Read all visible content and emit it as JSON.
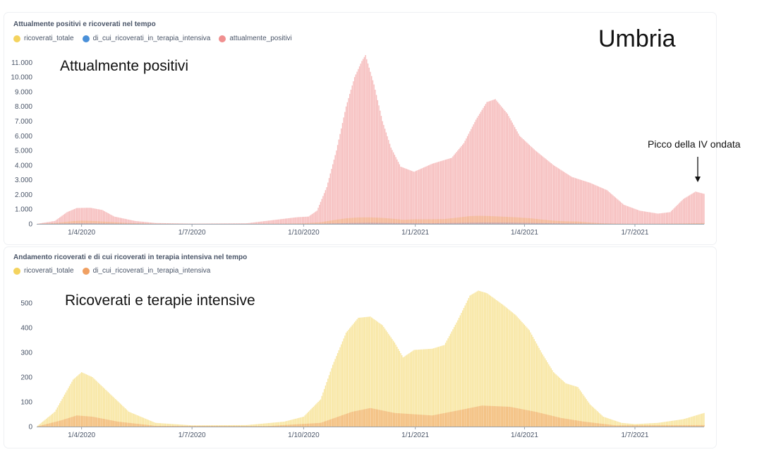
{
  "region_label": "Umbria",
  "chart_data": [
    {
      "type": "bar",
      "title": "Attualmente positivi e ricoverati nel tempo",
      "overlay_label": "Attualmente positivi",
      "annotation": "Picco della IV ondata",
      "xlabel": "",
      "ylabel": "",
      "ylim": [
        0,
        11500
      ],
      "yticks": [
        0,
        1000,
        2000,
        3000,
        4000,
        5000,
        6000,
        7000,
        8000,
        9000,
        10000,
        11000
      ],
      "ytick_labels": [
        "0",
        "1.000",
        "2.000",
        "3.000",
        "4.000",
        "5.000",
        "6.000",
        "7.000",
        "8.000",
        "9.000",
        "10.000",
        "11.000"
      ],
      "xtick_labels": [
        "1/4/2020",
        "1/7/2020",
        "1/10/2020",
        "1/1/2021",
        "1/4/2021",
        "1/7/2021"
      ],
      "xlim": [
        "2020-02-24",
        "2021-08-27"
      ],
      "grid": false,
      "legend_position": "top-left",
      "series": [
        {
          "name": "ricoverati_totale",
          "color": "#f4d35e",
          "points": [
            [
              "2020-02-24",
              0
            ],
            [
              "2020-03-10",
              60
            ],
            [
              "2020-03-25",
              190
            ],
            [
              "2020-04-01",
              220
            ],
            [
              "2020-04-10",
              200
            ],
            [
              "2020-04-25",
              130
            ],
            [
              "2020-05-10",
              60
            ],
            [
              "2020-06-01",
              15
            ],
            [
              "2020-07-01",
              5
            ],
            [
              "2020-08-15",
              6
            ],
            [
              "2020-09-15",
              20
            ],
            [
              "2020-10-01",
              40
            ],
            [
              "2020-10-15",
              110
            ],
            [
              "2020-10-25",
              250
            ],
            [
              "2020-11-05",
              380
            ],
            [
              "2020-11-15",
              440
            ],
            [
              "2020-11-25",
              445
            ],
            [
              "2020-12-05",
              410
            ],
            [
              "2020-12-15",
              340
            ],
            [
              "2020-12-22",
              280
            ],
            [
              "2020-12-31",
              310
            ],
            [
              "2021-01-15",
              315
            ],
            [
              "2021-01-25",
              330
            ],
            [
              "2021-02-05",
              430
            ],
            [
              "2021-02-15",
              530
            ],
            [
              "2021-02-22",
              550
            ],
            [
              "2021-03-01",
              540
            ],
            [
              "2021-03-15",
              490
            ],
            [
              "2021-03-25",
              450
            ],
            [
              "2021-04-05",
              390
            ],
            [
              "2021-04-15",
              300
            ],
            [
              "2021-04-25",
              220
            ],
            [
              "2021-05-05",
              175
            ],
            [
              "2021-05-15",
              160
            ],
            [
              "2021-05-25",
              90
            ],
            [
              "2021-06-05",
              40
            ],
            [
              "2021-06-20",
              15
            ],
            [
              "2021-07-01",
              10
            ],
            [
              "2021-07-20",
              15
            ],
            [
              "2021-08-10",
              30
            ],
            [
              "2021-08-27",
              55
            ]
          ]
        },
        {
          "name": "di_cui_ricoverati_in_terapia_intensiva",
          "color": "#4a90d9",
          "points": [
            [
              "2020-02-24",
              0
            ],
            [
              "2020-03-15",
              25
            ],
            [
              "2020-03-28",
              45
            ],
            [
              "2020-04-10",
              40
            ],
            [
              "2020-05-01",
              20
            ],
            [
              "2020-06-01",
              3
            ],
            [
              "2020-09-01",
              2
            ],
            [
              "2020-10-15",
              15
            ],
            [
              "2020-11-10",
              60
            ],
            [
              "2020-11-25",
              75
            ],
            [
              "2020-12-15",
              55
            ],
            [
              "2021-01-15",
              45
            ],
            [
              "2021-02-10",
              70
            ],
            [
              "2021-02-25",
              85
            ],
            [
              "2021-03-20",
              80
            ],
            [
              "2021-04-10",
              60
            ],
            [
              "2021-05-01",
              35
            ],
            [
              "2021-05-20",
              20
            ],
            [
              "2021-06-15",
              5
            ],
            [
              "2021-08-27",
              6
            ]
          ]
        },
        {
          "name": "attualmente_positivi",
          "color": "#f08f8f",
          "points": [
            [
              "2020-02-24",
              0
            ],
            [
              "2020-03-10",
              200
            ],
            [
              "2020-03-20",
              800
            ],
            [
              "2020-03-28",
              1080
            ],
            [
              "2020-04-08",
              1100
            ],
            [
              "2020-04-18",
              950
            ],
            [
              "2020-04-28",
              500
            ],
            [
              "2020-05-15",
              200
            ],
            [
              "2020-06-01",
              60
            ],
            [
              "2020-07-01",
              20
            ],
            [
              "2020-08-15",
              40
            ],
            [
              "2020-09-10",
              300
            ],
            [
              "2020-09-25",
              450
            ],
            [
              "2020-10-05",
              500
            ],
            [
              "2020-10-12",
              900
            ],
            [
              "2020-10-20",
              2500
            ],
            [
              "2020-10-28",
              5000
            ],
            [
              "2020-11-05",
              8000
            ],
            [
              "2020-11-12",
              10000
            ],
            [
              "2020-11-18",
              11100
            ],
            [
              "2020-11-21",
              11500
            ],
            [
              "2020-11-28",
              9500
            ],
            [
              "2020-12-05",
              7000
            ],
            [
              "2020-12-12",
              5200
            ],
            [
              "2020-12-20",
              3900
            ],
            [
              "2020-12-31",
              3550
            ],
            [
              "2021-01-15",
              4100
            ],
            [
              "2021-01-31",
              4500
            ],
            [
              "2021-02-10",
              5500
            ],
            [
              "2021-02-20",
              7100
            ],
            [
              "2021-03-01",
              8300
            ],
            [
              "2021-03-08",
              8500
            ],
            [
              "2021-03-18",
              7500
            ],
            [
              "2021-03-28",
              6000
            ],
            [
              "2021-04-10",
              5000
            ],
            [
              "2021-04-25",
              4000
            ],
            [
              "2021-05-10",
              3200
            ],
            [
              "2021-05-25",
              2800
            ],
            [
              "2021-06-08",
              2300
            ],
            [
              "2021-06-22",
              1300
            ],
            [
              "2021-07-05",
              900
            ],
            [
              "2021-07-20",
              700
            ],
            [
              "2021-07-30",
              800
            ],
            [
              "2021-08-10",
              1700
            ],
            [
              "2021-08-20",
              2200
            ],
            [
              "2021-08-27",
              2050
            ]
          ]
        }
      ]
    },
    {
      "type": "bar",
      "title": "Andamento ricoverati e di cui ricoverati in terapia intensiva nel tempo",
      "overlay_label": "Ricoverati e terapie intensive",
      "xlabel": "",
      "ylabel": "",
      "ylim": [
        0,
        560
      ],
      "yticks": [
        0,
        100,
        200,
        300,
        400,
        500
      ],
      "ytick_labels": [
        "0",
        "100",
        "200",
        "300",
        "400",
        "500"
      ],
      "xtick_labels": [
        "1/4/2020",
        "1/7/2020",
        "1/10/2020",
        "1/1/2021",
        "1/4/2021",
        "1/7/2021"
      ],
      "xlim": [
        "2020-02-24",
        "2021-08-27"
      ],
      "grid": false,
      "legend_position": "top-left",
      "series": [
        {
          "name": "ricoverati_totale",
          "color": "#f4d35e",
          "points": [
            [
              "2020-02-24",
              0
            ],
            [
              "2020-03-10",
              60
            ],
            [
              "2020-03-25",
              190
            ],
            [
              "2020-04-01",
              220
            ],
            [
              "2020-04-10",
              200
            ],
            [
              "2020-04-25",
              130
            ],
            [
              "2020-05-10",
              60
            ],
            [
              "2020-06-01",
              15
            ],
            [
              "2020-07-01",
              5
            ],
            [
              "2020-08-15",
              6
            ],
            [
              "2020-09-15",
              20
            ],
            [
              "2020-10-01",
              40
            ],
            [
              "2020-10-15",
              110
            ],
            [
              "2020-10-25",
              250
            ],
            [
              "2020-11-05",
              380
            ],
            [
              "2020-11-15",
              440
            ],
            [
              "2020-11-25",
              445
            ],
            [
              "2020-12-05",
              410
            ],
            [
              "2020-12-15",
              340
            ],
            [
              "2020-12-22",
              280
            ],
            [
              "2020-12-31",
              310
            ],
            [
              "2021-01-15",
              315
            ],
            [
              "2021-01-25",
              330
            ],
            [
              "2021-02-05",
              430
            ],
            [
              "2021-02-15",
              530
            ],
            [
              "2021-02-22",
              550
            ],
            [
              "2021-03-01",
              540
            ],
            [
              "2021-03-15",
              490
            ],
            [
              "2021-03-25",
              450
            ],
            [
              "2021-04-05",
              390
            ],
            [
              "2021-04-15",
              300
            ],
            [
              "2021-04-25",
              220
            ],
            [
              "2021-05-05",
              175
            ],
            [
              "2021-05-15",
              160
            ],
            [
              "2021-05-25",
              90
            ],
            [
              "2021-06-05",
              40
            ],
            [
              "2021-06-20",
              15
            ],
            [
              "2021-07-01",
              10
            ],
            [
              "2021-07-20",
              15
            ],
            [
              "2021-08-10",
              30
            ],
            [
              "2021-08-27",
              55
            ]
          ]
        },
        {
          "name": "di_cui_ricoverati_in_terapia_intensiva",
          "color": "#f0a062",
          "points": [
            [
              "2020-02-24",
              0
            ],
            [
              "2020-03-15",
              25
            ],
            [
              "2020-03-28",
              45
            ],
            [
              "2020-04-10",
              40
            ],
            [
              "2020-05-01",
              20
            ],
            [
              "2020-06-01",
              3
            ],
            [
              "2020-09-01",
              2
            ],
            [
              "2020-10-15",
              15
            ],
            [
              "2020-11-10",
              60
            ],
            [
              "2020-11-25",
              75
            ],
            [
              "2020-12-15",
              55
            ],
            [
              "2021-01-15",
              45
            ],
            [
              "2021-02-10",
              70
            ],
            [
              "2021-02-25",
              85
            ],
            [
              "2021-03-20",
              80
            ],
            [
              "2021-04-10",
              60
            ],
            [
              "2021-05-01",
              35
            ],
            [
              "2021-05-20",
              20
            ],
            [
              "2021-06-15",
              5
            ],
            [
              "2021-08-27",
              6
            ]
          ]
        }
      ]
    }
  ]
}
